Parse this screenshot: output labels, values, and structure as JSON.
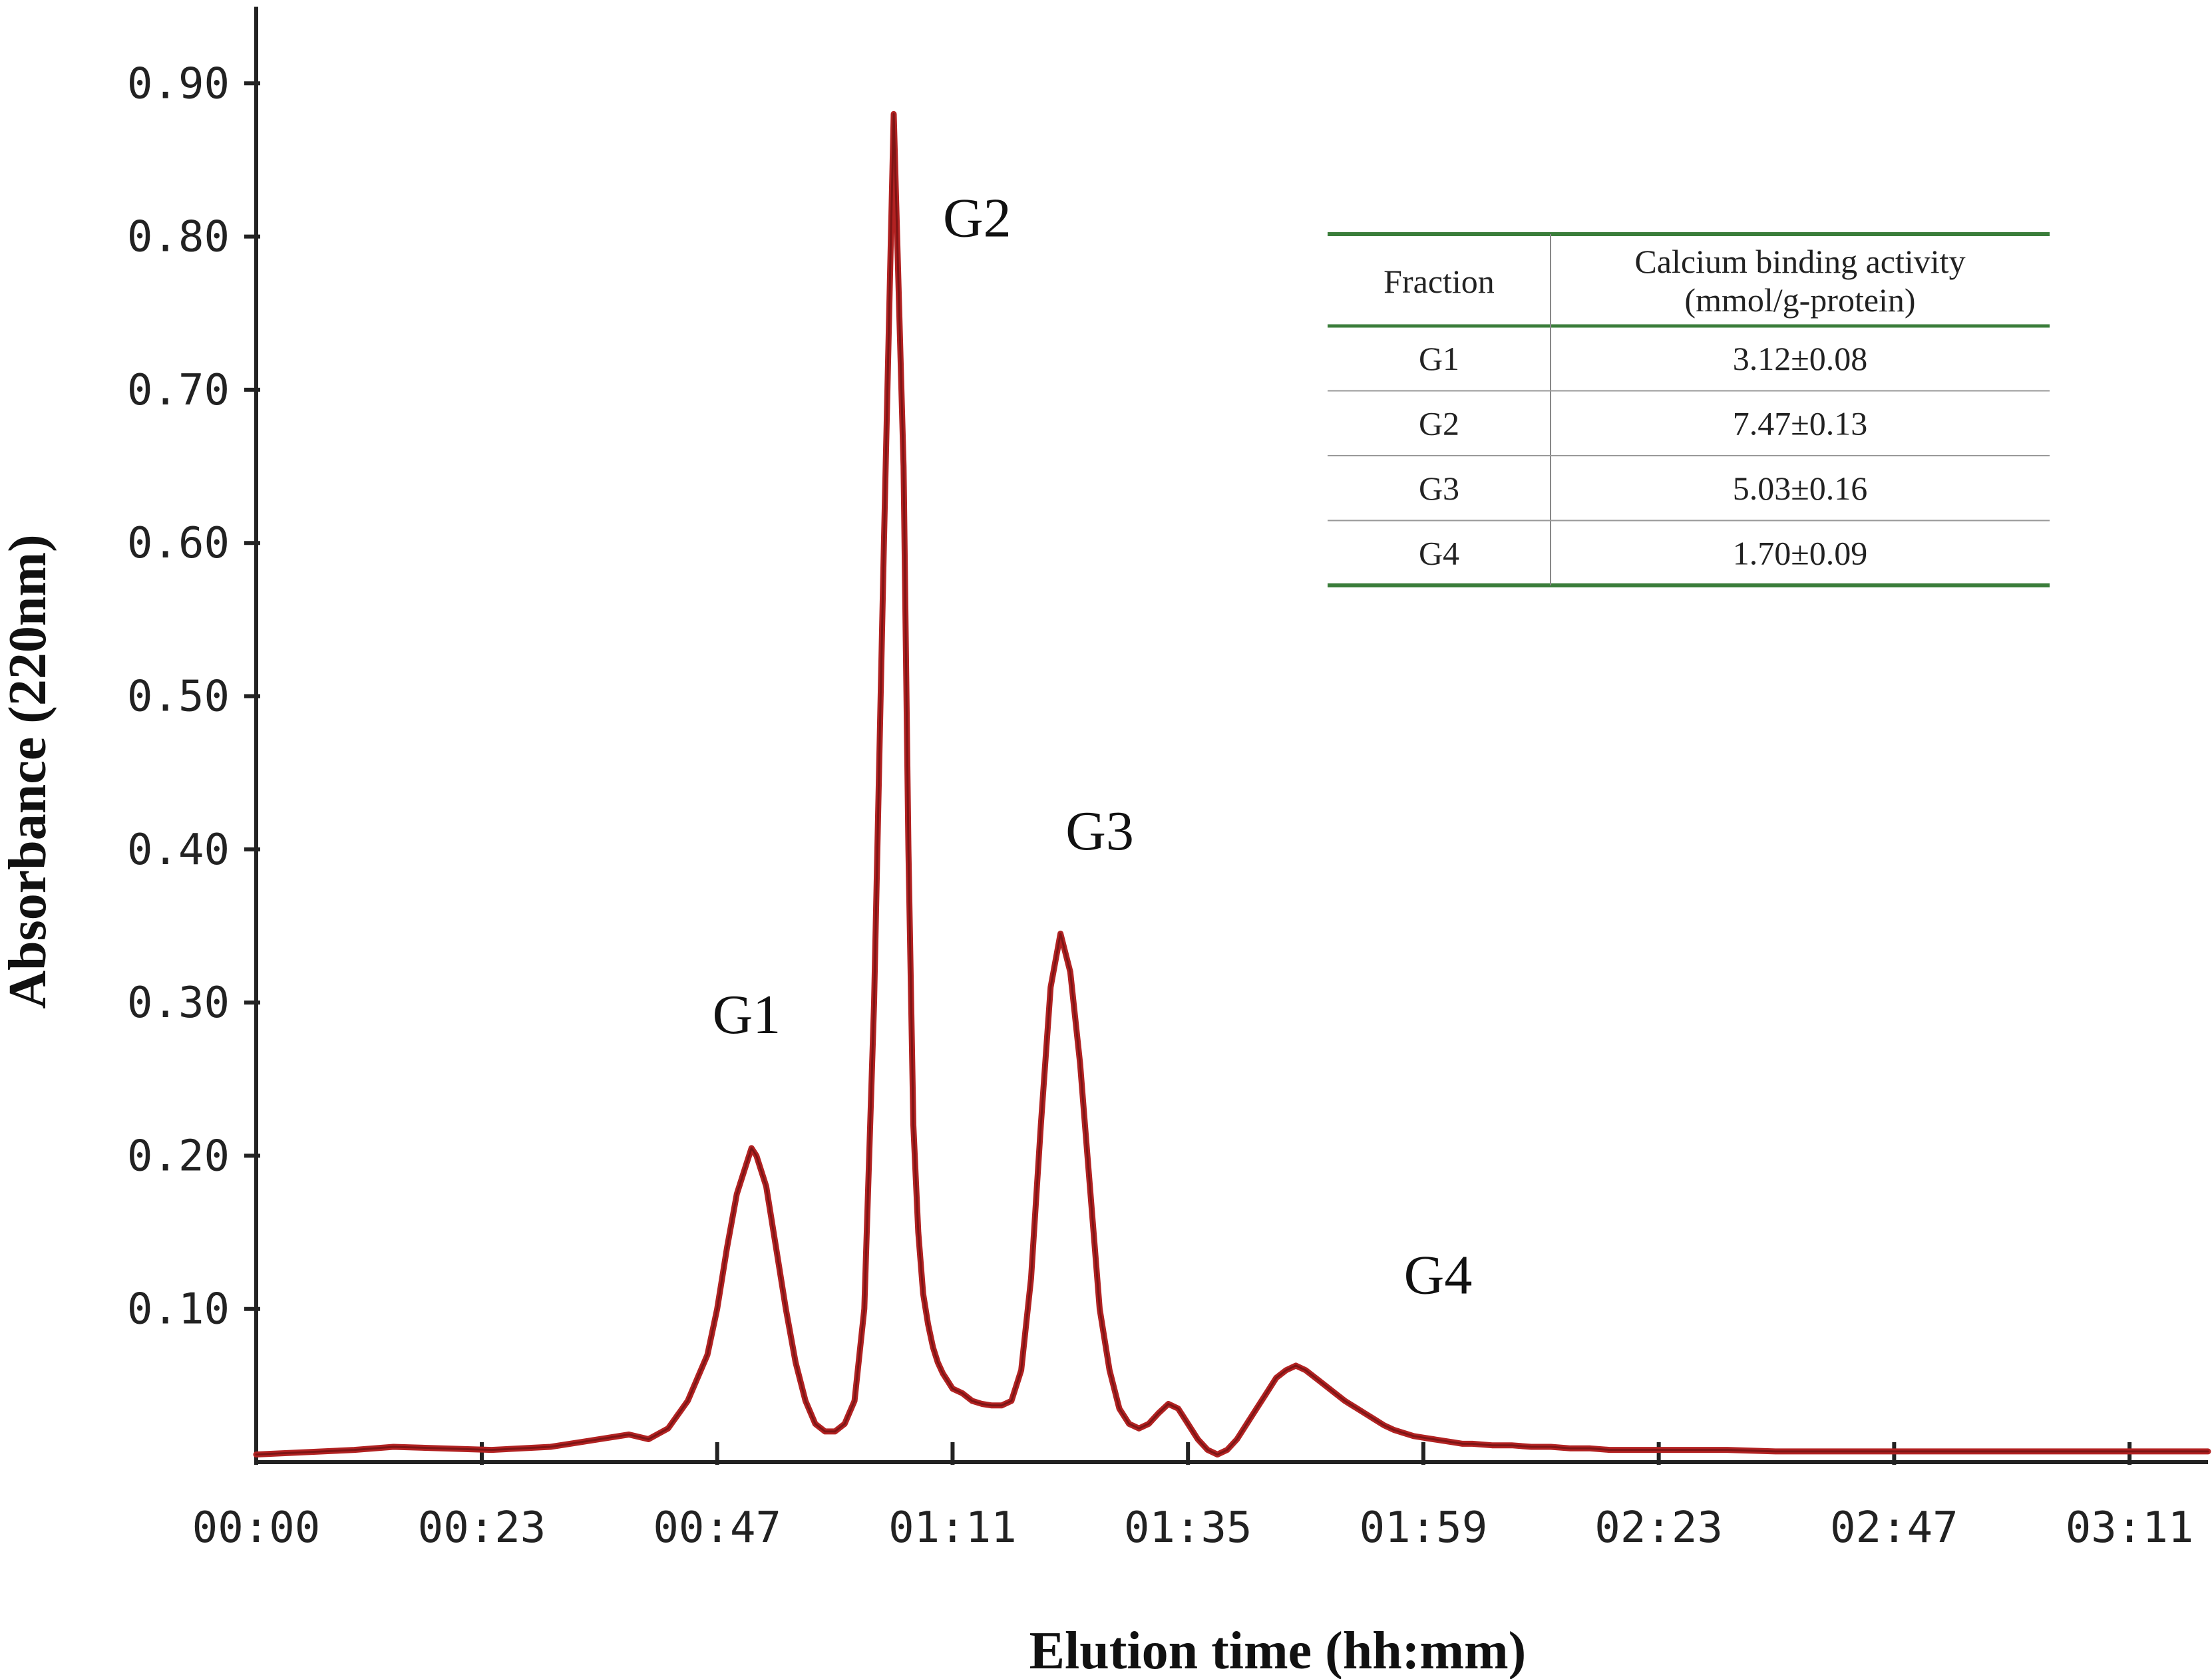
{
  "chart_data": {
    "type": "line",
    "xlabel": "Elution time (hh:mm)",
    "ylabel": "Absorbance (220nm)",
    "x_tick_labels": [
      "00:00",
      "00:23",
      "00:47",
      "01:11",
      "01:35",
      "01:59",
      "02:23",
      "02:47",
      "03:11"
    ],
    "x_tick_minutes": [
      0,
      23,
      47,
      71,
      95,
      119,
      143,
      167,
      191
    ],
    "xlim_minutes": [
      0,
      199
    ],
    "y_tick_labels": [
      "0.10",
      "0.20",
      "0.30",
      "0.40",
      "0.50",
      "0.60",
      "0.70",
      "0.80",
      "0.90"
    ],
    "y_ticks": [
      0.1,
      0.2,
      0.3,
      0.4,
      0.5,
      0.6,
      0.7,
      0.8,
      0.9
    ],
    "ylim": [
      0,
      0.95
    ],
    "grid": false,
    "line_color": "#b22222",
    "series": [
      {
        "x_minutes": [
          0,
          10,
          14,
          24,
          30,
          34,
          38,
          40,
          42,
          44,
          46,
          47,
          48,
          49,
          50,
          50.5,
          51,
          52,
          53,
          54,
          55,
          56,
          57,
          58,
          59,
          60,
          61,
          62,
          63,
          64,
          65,
          66,
          66.5,
          67,
          67.5,
          68,
          68.5,
          69,
          69.5,
          70,
          70.5,
          71,
          72,
          73,
          74,
          75,
          76,
          77,
          78,
          79,
          80,
          81,
          82,
          83,
          84,
          84.5,
          85,
          85.5,
          86,
          87,
          88,
          89,
          90,
          91,
          92,
          93,
          94,
          95,
          96,
          97,
          98,
          99,
          100,
          101,
          102,
          103,
          104,
          105,
          106,
          107,
          108,
          109,
          110,
          111,
          112,
          113,
          114,
          115,
          116,
          117,
          118,
          119,
          120,
          121,
          122,
          123,
          124,
          126,
          128,
          130,
          132,
          134,
          136,
          138,
          140,
          143,
          146,
          150,
          155,
          160,
          165,
          170,
          175,
          180,
          185,
          190,
          195,
          199
        ],
        "y": [
          0.005,
          0.008,
          0.01,
          0.008,
          0.01,
          0.014,
          0.018,
          0.015,
          0.022,
          0.04,
          0.07,
          0.1,
          0.14,
          0.175,
          0.195,
          0.205,
          0.2,
          0.18,
          0.14,
          0.1,
          0.065,
          0.04,
          0.025,
          0.02,
          0.02,
          0.025,
          0.04,
          0.1,
          0.3,
          0.6,
          0.88,
          0.65,
          0.4,
          0.22,
          0.15,
          0.11,
          0.09,
          0.075,
          0.065,
          0.058,
          0.053,
          0.048,
          0.045,
          0.04,
          0.038,
          0.037,
          0.037,
          0.04,
          0.06,
          0.12,
          0.22,
          0.31,
          0.345,
          0.32,
          0.26,
          0.22,
          0.18,
          0.14,
          0.1,
          0.06,
          0.035,
          0.025,
          0.022,
          0.025,
          0.032,
          0.038,
          0.035,
          0.025,
          0.015,
          0.008,
          0.005,
          0.008,
          0.015,
          0.025,
          0.035,
          0.045,
          0.055,
          0.06,
          0.063,
          0.06,
          0.055,
          0.05,
          0.045,
          0.04,
          0.036,
          0.032,
          0.028,
          0.024,
          0.021,
          0.019,
          0.017,
          0.016,
          0.015,
          0.014,
          0.013,
          0.012,
          0.012,
          0.011,
          0.011,
          0.01,
          0.01,
          0.009,
          0.009,
          0.008,
          0.008,
          0.008,
          0.008,
          0.008,
          0.007,
          0.007,
          0.007,
          0.007,
          0.007,
          0.007,
          0.007,
          0.007,
          0.007,
          0.007
        ]
      }
    ],
    "annotations": [
      {
        "text": "G1",
        "x_minutes": 50,
        "y": 0.28
      },
      {
        "text": "G2",
        "x_minutes": 73.5,
        "y": 0.8
      },
      {
        "text": "G3",
        "x_minutes": 86,
        "y": 0.4
      },
      {
        "text": "G4",
        "x_minutes": 120.5,
        "y": 0.11
      }
    ]
  },
  "inset_table": {
    "headers": [
      "Fraction",
      "Calcium binding activity",
      "(mmol/g-protein)"
    ],
    "rows": [
      [
        "G1",
        "3.12±0.08"
      ],
      [
        "G2",
        "7.47±0.13"
      ],
      [
        "G3",
        "5.03±0.16"
      ],
      [
        "G4",
        "1.70±0.09"
      ]
    ],
    "rule_color": "#3a7d3a"
  }
}
